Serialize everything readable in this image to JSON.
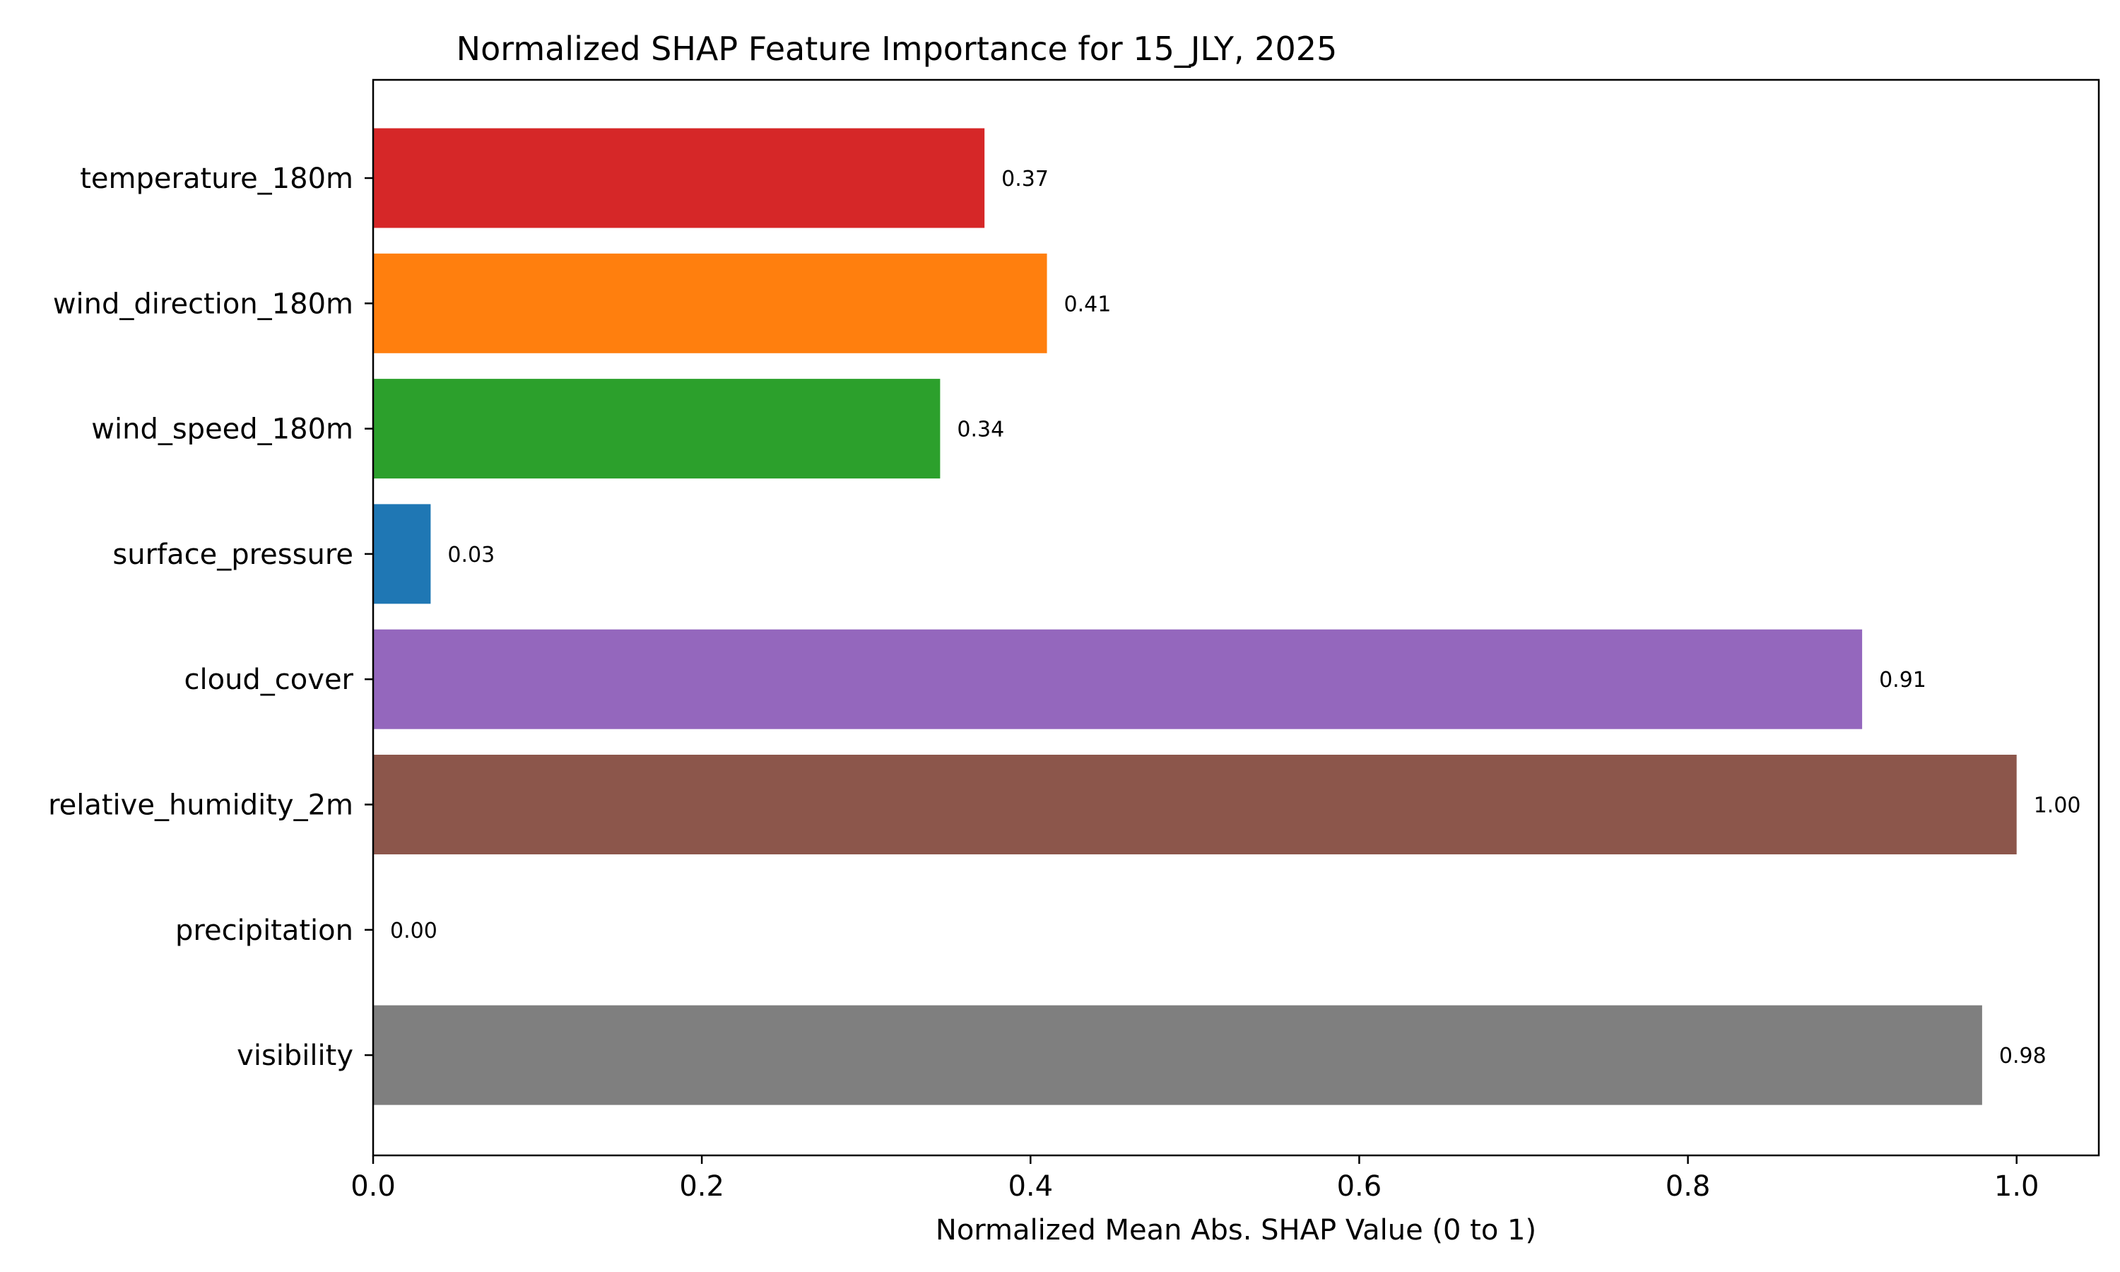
{
  "chart_data": {
    "type": "bar",
    "orientation": "horizontal",
    "title": "Normalized SHAP Feature Importance for 15_JLY, 2025",
    "xlabel": "Normalized Mean Abs. SHAP Value (0 to 1)",
    "ylabel": "",
    "xlim": [
      0,
      1.05
    ],
    "xticks": [
      0.0,
      0.2,
      0.4,
      0.6,
      0.8,
      1.0
    ],
    "xtick_labels": [
      "0.0",
      "0.2",
      "0.4",
      "0.6",
      "0.8",
      "1.0"
    ],
    "grid": false,
    "categories": [
      "temperature_180m",
      "wind_direction_180m",
      "wind_speed_180m",
      "surface_pressure",
      "cloud_cover",
      "relative_humidity_2m",
      "precipitation",
      "visibility"
    ],
    "values": [
      0.372,
      0.41,
      0.345,
      0.035,
      0.906,
      1.0,
      0.0,
      0.979
    ],
    "value_labels": [
      "0.37",
      "0.41",
      "0.34",
      "0.03",
      "0.91",
      "1.00",
      "0.00",
      "0.98"
    ],
    "colors": [
      "#d62728",
      "#ff7f0e",
      "#2ca02c",
      "#1f77b4",
      "#9467bd",
      "#8c564b",
      "#e377c2",
      "#7f7f7f"
    ]
  }
}
